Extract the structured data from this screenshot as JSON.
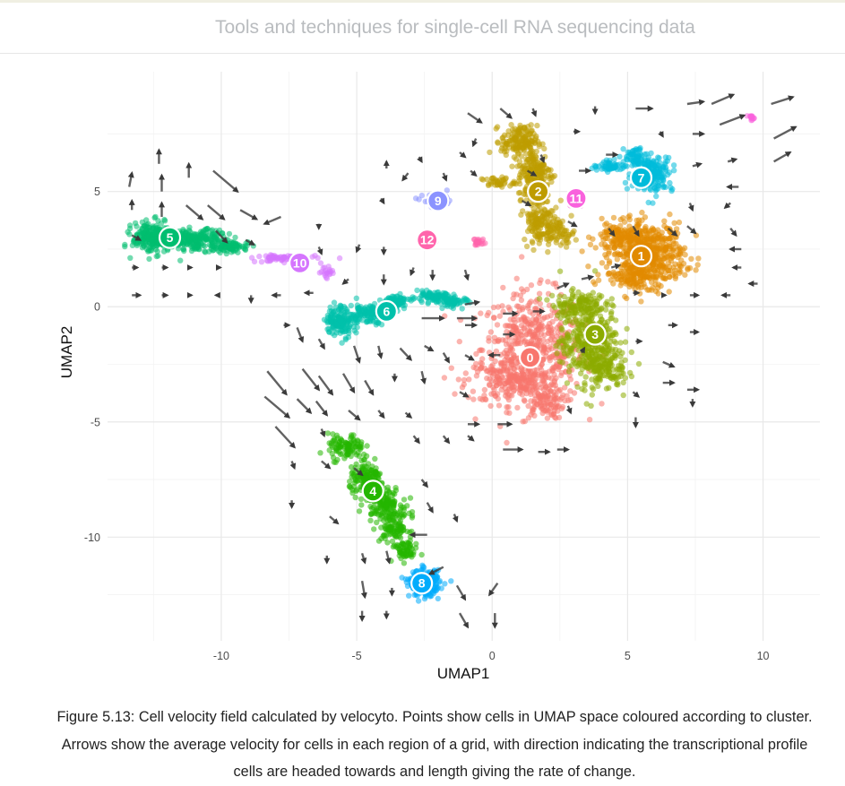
{
  "header": {
    "book_title": "Tools and techniques for single-cell RNA sequencing data"
  },
  "caption": {
    "text": "Figure 5.13: Cell velocity field calculated by velocyto. Points show cells in UMAP space coloured according to cluster. Arrows show the average velocity for cells in each region of a grid, with direction indicating the transcriptional profile cells are headed towards and length giving the rate of change."
  },
  "chart_data": {
    "type": "scatter",
    "xlabel": "UMAP1",
    "ylabel": "UMAP2",
    "xlim": [
      -14.2,
      12.1
    ],
    "ylim": [
      -14.5,
      10.2
    ],
    "xticks": [
      -10,
      -5,
      0,
      5,
      10
    ],
    "yticks": [
      -10,
      -5,
      0,
      5
    ],
    "grid": true,
    "legend": "none",
    "clusters": [
      {
        "id": "0",
        "color": "#F8766D",
        "label_xy": [
          1.4,
          -2.2
        ],
        "blobs": [
          [
            1.5,
            -1.8,
            1.7,
            2.2,
            520
          ],
          [
            0.8,
            -3.2,
            1.6,
            0.9,
            200
          ],
          [
            1.9,
            -4.2,
            0.7,
            0.6,
            80
          ]
        ]
      },
      {
        "id": "1",
        "color": "#E18A00",
        "label_xy": [
          5.5,
          2.2
        ],
        "blobs": [
          [
            5.8,
            2.3,
            1.2,
            1.2,
            480
          ],
          [
            4.7,
            3.0,
            0.8,
            0.6,
            120
          ],
          [
            5.2,
            1.4,
            1.0,
            0.5,
            120
          ]
        ]
      },
      {
        "id": "2",
        "color": "#BE9C00",
        "label_xy": [
          1.7,
          5.0
        ],
        "blobs": [
          [
            1.0,
            7.2,
            0.6,
            0.6,
            150
          ],
          [
            1.6,
            5.8,
            0.6,
            1.0,
            180
          ],
          [
            1.7,
            3.8,
            0.5,
            0.9,
            120
          ],
          [
            2.4,
            3.2,
            0.6,
            0.5,
            80
          ],
          [
            0.2,
            5.4,
            0.6,
            0.2,
            40
          ]
        ]
      },
      {
        "id": "3",
        "color": "#8CAB00",
        "label_xy": [
          3.8,
          -1.2
        ],
        "blobs": [
          [
            3.6,
            -1.6,
            1.0,
            1.6,
            380
          ],
          [
            3.2,
            0.1,
            0.9,
            0.5,
            120
          ],
          [
            4.3,
            -2.8,
            0.6,
            0.7,
            80
          ]
        ]
      },
      {
        "id": "4",
        "color": "#24B700",
        "label_xy": [
          -4.4,
          -8.0
        ],
        "blobs": [
          [
            -5.4,
            -6.1,
            0.6,
            0.5,
            100
          ],
          [
            -4.6,
            -7.5,
            0.6,
            0.6,
            140
          ],
          [
            -4.0,
            -8.5,
            0.6,
            0.6,
            140
          ],
          [
            -3.6,
            -9.6,
            0.5,
            0.6,
            100
          ],
          [
            -3.2,
            -10.6,
            0.4,
            0.4,
            60
          ]
        ]
      },
      {
        "id": "5",
        "color": "#00BE70",
        "label_xy": [
          -11.9,
          3.0
        ],
        "blobs": [
          [
            -12.5,
            3.0,
            0.7,
            0.6,
            260
          ],
          [
            -10.9,
            2.9,
            1.0,
            0.4,
            220
          ],
          [
            -9.6,
            2.6,
            0.6,
            0.2,
            70
          ]
        ]
      },
      {
        "id": "6",
        "color": "#00C1AB",
        "label_xy": [
          -3.9,
          -0.2
        ],
        "blobs": [
          [
            -5.6,
            -0.6,
            0.5,
            0.6,
            150
          ],
          [
            -4.6,
            -0.3,
            0.6,
            0.4,
            110
          ],
          [
            -3.6,
            0.2,
            0.5,
            0.3,
            80
          ],
          [
            -2.2,
            0.4,
            0.7,
            0.2,
            90
          ],
          [
            -1.4,
            0.2,
            0.5,
            0.2,
            50
          ]
        ]
      },
      {
        "id": "7",
        "color": "#00BBDA",
        "label_xy": [
          5.5,
          5.6
        ],
        "blobs": [
          [
            5.9,
            5.8,
            0.7,
            0.7,
            200
          ],
          [
            4.4,
            6.1,
            0.6,
            0.2,
            60
          ],
          [
            5.3,
            6.5,
            0.4,
            0.4,
            50
          ]
        ]
      },
      {
        "id": "8",
        "color": "#00ACFC",
        "label_xy": [
          -2.6,
          -12.0
        ],
        "blobs": [
          [
            -2.5,
            -12.0,
            0.5,
            0.5,
            220
          ]
        ]
      },
      {
        "id": "9",
        "color": "#8B93FF",
        "label_xy": [
          -2.0,
          4.6
        ],
        "blobs": [
          [
            -2.0,
            4.6,
            0.5,
            0.25,
            70
          ]
        ]
      },
      {
        "id": "10",
        "color": "#D575FE",
        "label_xy": [
          -7.1,
          1.9
        ],
        "blobs": [
          [
            -7.6,
            2.1,
            1.0,
            0.15,
            80
          ],
          [
            -6.2,
            1.5,
            0.3,
            0.3,
            20
          ]
        ]
      },
      {
        "id": "11",
        "color": "#F962DD",
        "label_xy": [
          3.1,
          4.7
        ],
        "blobs": [
          [
            3.0,
            4.6,
            0.2,
            0.2,
            12
          ],
          [
            9.6,
            8.2,
            0.15,
            0.1,
            15
          ]
        ]
      },
      {
        "id": "12",
        "color": "#FF65AC",
        "label_xy": [
          -2.4,
          2.9
        ],
        "blobs": [
          [
            -2.4,
            2.9,
            0.3,
            0.12,
            25
          ],
          [
            -0.5,
            2.8,
            0.2,
            0.15,
            25
          ]
        ]
      }
    ],
    "velocity_arrows": [
      [
        -13.4,
        5.2,
        0.1,
        0.6
      ],
      [
        -12.2,
        5.0,
        0.0,
        0.7
      ],
      [
        -12.3,
        6.2,
        0.0,
        0.6
      ],
      [
        -11.2,
        5.6,
        0.0,
        0.6
      ],
      [
        -10.3,
        5.9,
        0.9,
        -0.9
      ],
      [
        -13.3,
        4.2,
        0.0,
        0.4
      ],
      [
        -12.2,
        3.9,
        0.0,
        0.6
      ],
      [
        -11.3,
        4.4,
        0.6,
        -0.6
      ],
      [
        -10.5,
        4.4,
        0.6,
        -0.6
      ],
      [
        -9.3,
        4.2,
        0.6,
        -0.4
      ],
      [
        -7.8,
        3.9,
        -0.6,
        -0.3
      ],
      [
        -6.4,
        3.6,
        0.0,
        -0.2
      ],
      [
        -13.3,
        3.1,
        0.3,
        -0.2
      ],
      [
        -10.2,
        3.3,
        0.4,
        -0.5
      ],
      [
        -9.1,
        2.9,
        0.3,
        -0.2
      ],
      [
        -13.3,
        1.7,
        0.2,
        0.0
      ],
      [
        -12.2,
        1.7,
        0.2,
        0.0
      ],
      [
        -11.2,
        1.7,
        0.1,
        0.0
      ],
      [
        -10.1,
        1.7,
        0.0,
        0.0
      ],
      [
        -6.4,
        2.6,
        0.1,
        -0.3
      ],
      [
        -4.9,
        2.7,
        -0.1,
        -0.3
      ],
      [
        -4.0,
        2.6,
        0.0,
        -0.3
      ],
      [
        -13.3,
        0.5,
        0.3,
        0.0
      ],
      [
        -12.2,
        0.5,
        0.2,
        0.0
      ],
      [
        -11.2,
        0.5,
        0.1,
        0.0
      ],
      [
        -10.1,
        0.5,
        -0.1,
        0.0
      ],
      [
        -8.9,
        0.5,
        0.0,
        -0.3
      ],
      [
        -7.8,
        0.5,
        -0.3,
        0.0
      ],
      [
        -6.6,
        0.6,
        -0.3,
        0.0
      ],
      [
        -5.3,
        1.2,
        -0.2,
        -0.2
      ],
      [
        -4.0,
        1.4,
        0.0,
        -0.4
      ],
      [
        -2.9,
        1.7,
        -0.1,
        -0.3
      ],
      [
        -2.2,
        1.6,
        0.0,
        -0.4
      ],
      [
        -1.0,
        1.6,
        0.1,
        -0.4
      ],
      [
        -4.1,
        4.7,
        0.1,
        -0.2
      ],
      [
        -3.1,
        5.8,
        -0.2,
        -0.3
      ],
      [
        -1.8,
        5.8,
        0.1,
        -0.3
      ],
      [
        -0.8,
        5.9,
        0.2,
        -0.2
      ],
      [
        -3.9,
        6.0,
        0.0,
        0.3
      ],
      [
        -2.7,
        6.5,
        0.1,
        -0.2
      ],
      [
        -1.2,
        6.7,
        0.2,
        -0.2
      ],
      [
        -0.6,
        7.3,
        -0.1,
        -0.3
      ],
      [
        -0.9,
        8.4,
        0.5,
        -0.4
      ],
      [
        0.3,
        8.6,
        0.4,
        -0.4
      ],
      [
        1.5,
        8.6,
        0.1,
        -0.3
      ],
      [
        -7.7,
        -0.8,
        0.2,
        0.0
      ],
      [
        -7.2,
        -0.9,
        0.2,
        -0.6
      ],
      [
        -6.4,
        -1.4,
        0.2,
        -0.4
      ],
      [
        -5.1,
        -1.7,
        0.2,
        -0.7
      ],
      [
        -4.2,
        -1.7,
        0.1,
        -0.5
      ],
      [
        -3.4,
        -1.8,
        0.4,
        -0.5
      ],
      [
        -2.5,
        -1.7,
        0.3,
        -0.2
      ],
      [
        -1.8,
        -2.0,
        0.2,
        -0.4
      ],
      [
        -1.0,
        -2.1,
        0.3,
        -0.2
      ],
      [
        -1.0,
        -0.8,
        0.4,
        0.0
      ],
      [
        -1.0,
        0.1,
        0.5,
        0.1
      ],
      [
        -2.6,
        -0.5,
        0.8,
        0.0
      ],
      [
        -1.3,
        -0.5,
        0.7,
        0.0
      ],
      [
        -8.3,
        -2.8,
        0.7,
        -1.0
      ],
      [
        -7.0,
        -2.7,
        0.6,
        -0.9
      ],
      [
        -6.4,
        -3.0,
        0.5,
        -0.8
      ],
      [
        -5.5,
        -2.9,
        0.4,
        -0.8
      ],
      [
        -4.7,
        -3.2,
        0.3,
        -0.6
      ],
      [
        -3.6,
        -2.9,
        0.0,
        -0.3
      ],
      [
        -2.6,
        -2.8,
        0.1,
        -0.5
      ],
      [
        -1.2,
        -3.7,
        0.3,
        -0.2
      ],
      [
        -8.4,
        -3.9,
        0.9,
        -0.9
      ],
      [
        -7.2,
        -4.0,
        0.5,
        -0.6
      ],
      [
        -6.5,
        -4.1,
        0.4,
        -0.6
      ],
      [
        -5.3,
        -4.5,
        0.4,
        -0.4
      ],
      [
        -4.2,
        -4.5,
        0.2,
        -0.3
      ],
      [
        -3.2,
        -4.6,
        0.2,
        -0.2
      ],
      [
        -8.0,
        -5.2,
        0.7,
        -0.9
      ],
      [
        -6.3,
        -5.3,
        0.1,
        -0.3
      ],
      [
        -2.9,
        -5.6,
        0.2,
        -0.3
      ],
      [
        -1.8,
        -5.6,
        0.2,
        -0.3
      ],
      [
        -0.9,
        -5.6,
        0.2,
        -0.2
      ],
      [
        -7.4,
        -6.7,
        0.1,
        -0.3
      ],
      [
        -6.3,
        -6.7,
        0.3,
        -0.3
      ],
      [
        -5.1,
        -7.0,
        0.3,
        -0.3
      ],
      [
        -2.6,
        -7.5,
        0.2,
        -0.3
      ],
      [
        -7.4,
        -8.4,
        0.0,
        -0.3
      ],
      [
        -6.0,
        -9.1,
        0.3,
        -0.3
      ],
      [
        -2.4,
        -8.5,
        0.2,
        -0.4
      ],
      [
        -1.4,
        -9.0,
        0.1,
        -0.3
      ],
      [
        -6.1,
        -10.8,
        0.0,
        -0.3
      ],
      [
        -4.8,
        -10.7,
        0.1,
        -0.4
      ],
      [
        -3.9,
        -10.6,
        0.1,
        -0.5
      ],
      [
        -2.4,
        -9.9,
        -0.6,
        0.0
      ],
      [
        -1.8,
        -11.3,
        -0.5,
        -0.3
      ],
      [
        -4.8,
        -11.9,
        0.1,
        -0.7
      ],
      [
        -3.7,
        -12.2,
        0.0,
        -0.3
      ],
      [
        -1.3,
        -12.1,
        0.3,
        -0.6
      ],
      [
        0.2,
        -12.0,
        -0.3,
        -0.5
      ],
      [
        -4.8,
        -13.2,
        0.0,
        -0.4
      ],
      [
        -3.9,
        -13.2,
        0.0,
        -0.3
      ],
      [
        -1.2,
        -13.3,
        0.3,
        -0.6
      ],
      [
        0.1,
        -13.3,
        0.0,
        -0.6
      ],
      [
        -0.9,
        -5.1,
        0.4,
        0.0
      ],
      [
        0.2,
        -5.1,
        0.5,
        0.0
      ],
      [
        0.4,
        -6.2,
        0.7,
        0.0
      ],
      [
        1.7,
        -6.3,
        0.4,
        0.0
      ],
      [
        2.4,
        -6.2,
        0.4,
        0.0
      ],
      [
        0.3,
        -2.1,
        -0.4,
        0.0
      ],
      [
        0.4,
        -1.2,
        0.4,
        0.0
      ],
      [
        0.4,
        -0.3,
        0.5,
        0.0
      ],
      [
        1.5,
        -0.2,
        0.4,
        0.0
      ],
      [
        2.4,
        0.8,
        0.4,
        0.2
      ],
      [
        3.3,
        1.2,
        0.4,
        0.1
      ],
      [
        4.4,
        1.7,
        0.3,
        0.1
      ],
      [
        5.2,
        0.6,
        0.2,
        0.0
      ],
      [
        6.3,
        0.5,
        0.1,
        0.0
      ],
      [
        7.3,
        0.5,
        0.3,
        0.0
      ],
      [
        8.8,
        0.5,
        -0.3,
        0.0
      ],
      [
        9.8,
        1.0,
        -0.3,
        0.0
      ],
      [
        3.3,
        -2.0,
        0.1,
        0.2
      ],
      [
        5.3,
        -1.5,
        0.2,
        0.0
      ],
      [
        6.5,
        -0.8,
        0.3,
        0.0
      ],
      [
        7.3,
        -1.1,
        0.3,
        0.0
      ],
      [
        6.3,
        -2.4,
        0.4,
        -0.2
      ],
      [
        6.3,
        -3.3,
        0.4,
        0.0
      ],
      [
        7.2,
        -3.6,
        0.4,
        0.0
      ],
      [
        5.2,
        -3.7,
        0.2,
        -0.2
      ],
      [
        5.3,
        -4.8,
        0.0,
        -0.4
      ],
      [
        2.8,
        -4.3,
        0.1,
        -0.3
      ],
      [
        7.4,
        -4.0,
        0.0,
        -0.3
      ],
      [
        4.3,
        3.4,
        0.2,
        -0.3
      ],
      [
        5.2,
        3.5,
        0.2,
        -0.4
      ],
      [
        6.5,
        3.4,
        0.3,
        -0.3
      ],
      [
        7.2,
        3.5,
        0.3,
        -0.3
      ],
      [
        8.8,
        3.4,
        0.2,
        -0.3
      ],
      [
        9.2,
        2.5,
        -0.4,
        0.0
      ],
      [
        9.2,
        1.7,
        -0.3,
        0.0
      ],
      [
        7.3,
        4.5,
        0.1,
        -0.3
      ],
      [
        8.8,
        4.5,
        -0.2,
        -0.2
      ],
      [
        3.2,
        5.9,
        0.4,
        0.0
      ],
      [
        3.0,
        7.6,
        0.2,
        0.0
      ],
      [
        4.2,
        6.6,
        0.4,
        0.0
      ],
      [
        6.2,
        7.6,
        0.1,
        -0.2
      ],
      [
        7.4,
        7.5,
        0.4,
        0.0
      ],
      [
        7.4,
        6.1,
        0.3,
        0.1
      ],
      [
        8.7,
        6.3,
        0.3,
        0.1
      ],
      [
        9.1,
        5.2,
        -0.4,
        0.0
      ],
      [
        10.4,
        6.3,
        0.6,
        0.4
      ],
      [
        8.4,
        7.9,
        0.9,
        0.4
      ],
      [
        10.4,
        7.3,
        0.8,
        0.5
      ],
      [
        8.1,
        8.8,
        0.8,
        0.4
      ],
      [
        10.3,
        8.8,
        0.8,
        0.3
      ],
      [
        7.2,
        8.8,
        0.6,
        0.1
      ],
      [
        5.3,
        8.6,
        0.6,
        0.0
      ],
      [
        3.8,
        8.7,
        0.0,
        -0.3
      ],
      [
        1.8,
        6.6,
        0.1,
        -0.3
      ],
      [
        1.3,
        5.9,
        0.3,
        -0.2
      ],
      [
        1.1,
        4.6,
        0.3,
        -0.2
      ],
      [
        2.8,
        3.7,
        0.3,
        -0.2
      ]
    ]
  }
}
